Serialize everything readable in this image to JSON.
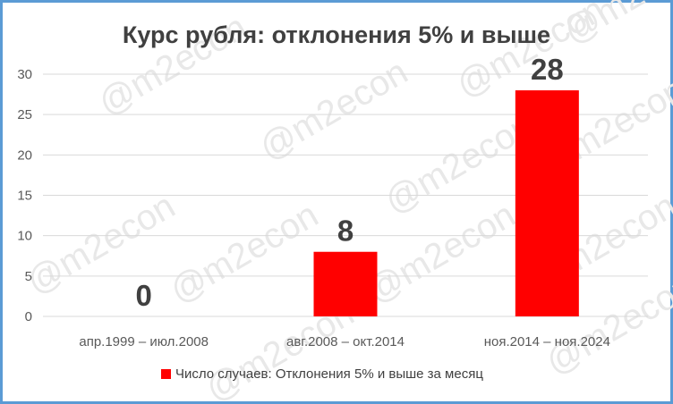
{
  "chart_data": {
    "type": "bar",
    "title": "Курс рубля: отклонения 5% и выше",
    "categories": [
      "апр.1999 – июл.2008",
      "авг.2008 – окт.2014",
      "ноя.2014 – ноя.2024"
    ],
    "series": [
      {
        "name": "Число случаев: Отклонения 5% и выше за месяц",
        "values": [
          0,
          8,
          28
        ],
        "color": "#ff0000"
      }
    ],
    "data_labels": [
      "0",
      "8",
      "28"
    ],
    "ylim": [
      0,
      30
    ],
    "yticks": [
      "0",
      "5",
      "10",
      "15",
      "20",
      "25",
      "30"
    ],
    "grid": true,
    "legend_position": "bottom",
    "watermark": "@m2econ",
    "frame_color": "#5b9bd5"
  }
}
